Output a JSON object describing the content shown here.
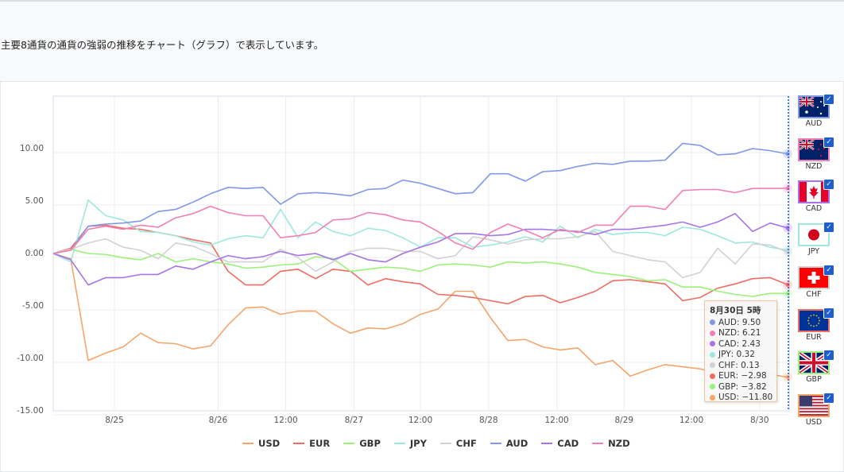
{
  "intro_text": "主要8通貨の通貨の強弱の推移をチャート（グラフ）で表示しています。",
  "chart_data": {
    "type": "line",
    "title": "",
    "xlabel": "",
    "ylabel": "",
    "ylim": [
      -15,
      15
    ],
    "yticks": [
      10,
      5,
      0,
      -5,
      -10,
      -15
    ],
    "ytick_labels": [
      "10.00",
      "5.00",
      "0.00",
      "-5.00",
      "-10.00",
      "-15.00"
    ],
    "x_index_range": [
      0,
      42
    ],
    "xticks": [
      {
        "label": "8/25",
        "at": 3.5
      },
      {
        "label": "8/26",
        "at": 9.43
      },
      {
        "label": "12:00",
        "at": 13.3
      },
      {
        "label": "8/27",
        "at": 17.2
      },
      {
        "label": "12:00",
        "at": 21.0
      },
      {
        "label": "8/28",
        "at": 24.9
      },
      {
        "label": "12:00",
        "at": 28.8
      },
      {
        "label": "8/29",
        "at": 32.65
      },
      {
        "label": "12:00",
        "at": 36.5
      },
      {
        "label": "8/30",
        "at": 40.4
      }
    ],
    "grid": true,
    "legend_position": "bottom",
    "series": [
      {
        "name": "USD",
        "color": "#f5a56a",
        "values": [
          0,
          -0.5,
          -10.2,
          -9.5,
          -8.9,
          -7.6,
          -8.5,
          -8.6,
          -9.1,
          -8.8,
          -6.8,
          -5.2,
          -5.1,
          -5.8,
          -5.5,
          -5.5,
          -6.7,
          -7.6,
          -7.1,
          -7.2,
          -6.7,
          -5.8,
          -5.3,
          -3.6,
          -3.6,
          -6.1,
          -8.3,
          -8.2,
          -8.9,
          -9.2,
          -9.0,
          -10.6,
          -10.2,
          -11.7,
          -11.1,
          -10.6,
          -10.8,
          -11.0,
          -11.4,
          -11.2,
          -11.4,
          -11.5,
          -11.8
        ]
      },
      {
        "name": "EUR",
        "color": "#f06c62",
        "values": [
          0,
          0.5,
          2.6,
          2.7,
          2.4,
          2.3,
          2.0,
          1.7,
          1.3,
          1.0,
          -1.7,
          -3.0,
          -3.0,
          -1.7,
          -1.5,
          -2.4,
          -1.5,
          -1.7,
          -3.0,
          -2.4,
          -2.7,
          -2.9,
          -3.9,
          -4.0,
          -4.2,
          -4.5,
          -4.8,
          -4.1,
          -4.0,
          -4.7,
          -4.2,
          -3.6,
          -2.6,
          -2.5,
          -2.7,
          -2.9,
          -4.5,
          -4.2,
          -3.3,
          -2.9,
          -2.4,
          -2.3,
          -2.98
        ]
      },
      {
        "name": "GBP",
        "color": "#9af27a",
        "values": [
          0,
          0.4,
          0,
          -0.1,
          -0.4,
          -0.6,
          0,
          -0.8,
          -0.5,
          -0.8,
          -1.0,
          -1.4,
          -1.3,
          -1.1,
          -1.0,
          -0.3,
          -0.5,
          -1.7,
          -1.5,
          -1.3,
          -1.4,
          -1.7,
          -1.1,
          -1.0,
          -1.1,
          -1.3,
          -0.8,
          -0.9,
          -0.8,
          -1.0,
          -1.3,
          -1.8,
          -2.0,
          -2.2,
          -2.6,
          -2.5,
          -3.2,
          -3.2,
          -3.6,
          -3.9,
          -4.1,
          -3.8,
          -3.82
        ]
      },
      {
        "name": "JPY",
        "color": "#9de8de",
        "values": [
          0,
          -0.8,
          5.1,
          3.6,
          3.2,
          2.1,
          2.0,
          1.7,
          1.1,
          0.8,
          1.4,
          1.7,
          1.5,
          4.2,
          1.5,
          3.0,
          2.1,
          1.7,
          2.4,
          2.2,
          1.5,
          0.6,
          1.5,
          1.5,
          0.6,
          0.8,
          1.1,
          1.6,
          1.1,
          2.6,
          1.5,
          2.3,
          1.8,
          2.0,
          2.0,
          1.7,
          2.5,
          2.3,
          1.7,
          1.0,
          1.1,
          0.6,
          0.32
        ]
      },
      {
        "name": "CHF",
        "color": "#d2d2d2",
        "values": [
          0,
          0.4,
          1.0,
          1.4,
          0.6,
          0.3,
          -0.5,
          1.0,
          0.7,
          0,
          -0.8,
          -0.8,
          -0.8,
          0.4,
          -0.4,
          -1.7,
          -0.8,
          0.2,
          0.5,
          0.5,
          0.2,
          0.2,
          -0.5,
          -0.2,
          1.6,
          1.3,
          0.9,
          1.3,
          1.4,
          1.4,
          1.6,
          2.1,
          0.2,
          -0.2,
          -0.6,
          -0.8,
          -2.3,
          -1.8,
          0.5,
          -1.0,
          0.9,
          0.8,
          0.13
        ]
      },
      {
        "name": "AUD",
        "color": "#7f98e8",
        "values": [
          0,
          0.3,
          2.6,
          2.8,
          2.9,
          3.1,
          4.0,
          4.2,
          4.9,
          5.7,
          6.3,
          6.2,
          6.3,
          4.7,
          5.7,
          5.8,
          5.7,
          5.5,
          6.1,
          6.2,
          7.0,
          6.7,
          6.2,
          5.7,
          5.8,
          7.6,
          7.6,
          6.9,
          7.8,
          7.9,
          8.3,
          8.6,
          8.5,
          8.8,
          8.8,
          8.9,
          10.5,
          10.3,
          9.4,
          9.5,
          10.0,
          9.8,
          9.5
        ]
      },
      {
        "name": "CAD",
        "color": "#a574e8",
        "values": [
          0,
          -0.6,
          -3.0,
          -2.3,
          -2.3,
          -2.0,
          -2.0,
          -1.2,
          -1.5,
          -0.8,
          -0.2,
          -0.5,
          -0.3,
          0.2,
          -0.2,
          0,
          -0.6,
          0,
          -0.6,
          -0.8,
          0,
          0.6,
          1.1,
          1.9,
          1.9,
          1.7,
          1.8,
          2.3,
          2.3,
          2.2,
          2.1,
          1.8,
          2.3,
          2.3,
          2.5,
          2.7,
          3.0,
          2.5,
          3.0,
          3.8,
          2.1,
          2.9,
          2.43
        ]
      },
      {
        "name": "NZD",
        "color": "#f27fb5",
        "values": [
          0,
          0.3,
          2.3,
          2.6,
          2.3,
          2.7,
          2.5,
          3.4,
          3.8,
          4.5,
          3.9,
          3.6,
          3.6,
          1.5,
          1.7,
          2.0,
          3.2,
          3.3,
          3.9,
          3.7,
          3.2,
          3.0,
          2.1,
          1.0,
          0.4,
          2.0,
          2.8,
          2.2,
          1.5,
          2.3,
          2.0,
          2.7,
          2.7,
          4.5,
          4.5,
          4.2,
          6.0,
          6.1,
          6.1,
          5.8,
          6.2,
          6.2,
          6.21
        ]
      }
    ],
    "tooltip": {
      "title": "8月30日 5時",
      "rows": [
        {
          "name": "AUD",
          "value": "9.50",
          "color": "#7f98e8"
        },
        {
          "name": "NZD",
          "value": "6.21",
          "color": "#f27fb5"
        },
        {
          "name": "CAD",
          "value": "2.43",
          "color": "#a574e8"
        },
        {
          "name": "JPY",
          "value": "0.32",
          "color": "#9de8de"
        },
        {
          "name": "CHF",
          "value": "0.13",
          "color": "#d2d2d2"
        },
        {
          "name": "EUR",
          "value": "−2.98",
          "color": "#f06c62"
        },
        {
          "name": "GBP",
          "value": "−3.82",
          "color": "#9af27a"
        },
        {
          "name": "USD",
          "value": "−11.80",
          "color": "#f5a56a"
        }
      ]
    }
  },
  "flags": [
    {
      "code": "AUD",
      "color": "#7f98e8",
      "checked": true
    },
    {
      "code": "NZD",
      "color": "#f27fb5",
      "checked": true
    },
    {
      "code": "CAD",
      "color": "#a574e8",
      "checked": true
    },
    {
      "code": "JPY",
      "color": "#9de8de",
      "checked": true
    },
    {
      "code": "CHF",
      "color": "#d2d2d2",
      "checked": true
    },
    {
      "code": "EUR",
      "color": "#f06c62",
      "checked": true
    },
    {
      "code": "GBP",
      "color": "#9af27a",
      "checked": true
    },
    {
      "code": "USD",
      "color": "#f5a56a",
      "checked": true
    }
  ],
  "check_glyph": "✓"
}
